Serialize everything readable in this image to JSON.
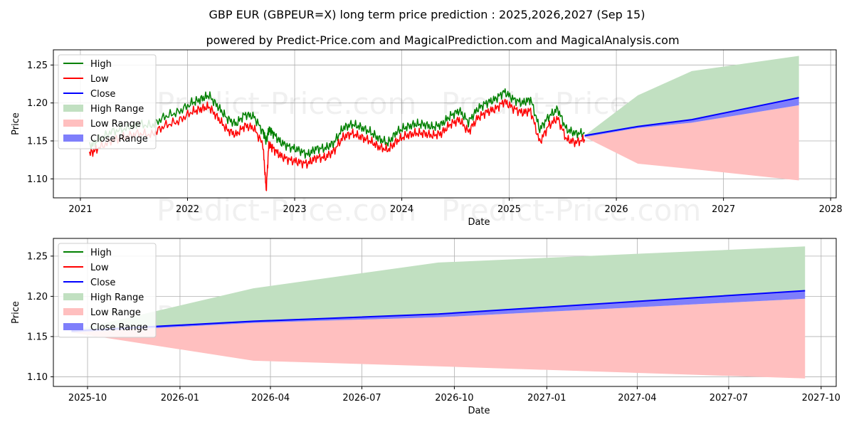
{
  "title": "GBP EUR (GBPEUR=X) long term price prediction : 2025,2026,2027 (Sep 15)",
  "subtitle": "powered by Predict-Price.com and MagicalPrediction.com and MagicalAnalysis.com",
  "watermark": "Predict-Price.com",
  "colors": {
    "high": "#008000",
    "low": "#ff0000",
    "close": "#0000ff",
    "high_range": "#c1e0c1",
    "low_range": "#ffbfbf",
    "close_range": "#7f7ffb"
  },
  "chart_data": [
    {
      "type": "line",
      "panel": "top",
      "xlabel": "Date",
      "ylabel": "Price",
      "x_ticks": [
        "2021",
        "2022",
        "2023",
        "2024",
        "2025",
        "2026",
        "2027",
        "2028"
      ],
      "y_ticks": [
        "1.10",
        "1.15",
        "1.20",
        "1.25"
      ],
      "xlim": [
        "2020-10-01",
        "2028-01-20"
      ],
      "ylim": [
        1.075,
        1.27
      ],
      "grid": true,
      "legend": {
        "placement": "top-left",
        "entries": [
          "High",
          "Low",
          "Close",
          "High Range",
          "Low Range",
          "Close Range"
        ]
      },
      "history": {
        "x": [
          "2021-02-01",
          "2021-03-01",
          "2021-04-15",
          "2021-06-01",
          "2021-07-15",
          "2021-09-01",
          "2021-10-15",
          "2021-12-01",
          "2022-01-15",
          "2022-02-15",
          "2022-03-15",
          "2022-04-15",
          "2022-05-15",
          "2022-06-15",
          "2022-07-15",
          "2022-08-15",
          "2022-09-15",
          "2022-09-26",
          "2022-10-05",
          "2022-10-20",
          "2022-11-15",
          "2022-12-15",
          "2023-01-15",
          "2023-02-15",
          "2023-03-15",
          "2023-04-15",
          "2023-05-15",
          "2023-06-15",
          "2023-07-15",
          "2023-08-15",
          "2023-09-15",
          "2023-10-15",
          "2023-11-15",
          "2023-12-15",
          "2024-01-15",
          "2024-02-15",
          "2024-03-15",
          "2024-04-15",
          "2024-05-15",
          "2024-06-15",
          "2024-07-15",
          "2024-08-15",
          "2024-09-15",
          "2024-10-15",
          "2024-11-15",
          "2024-12-15",
          "2025-01-15",
          "2025-02-15",
          "2025-03-15",
          "2025-04-15",
          "2025-05-15",
          "2025-06-15",
          "2025-07-15",
          "2025-08-15",
          "2025-09-15"
        ],
        "high": [
          1.143,
          1.15,
          1.162,
          1.166,
          1.172,
          1.17,
          1.182,
          1.188,
          1.2,
          1.205,
          1.21,
          1.195,
          1.18,
          1.172,
          1.185,
          1.182,
          1.162,
          1.15,
          1.165,
          1.16,
          1.148,
          1.142,
          1.138,
          1.132,
          1.14,
          1.14,
          1.148,
          1.167,
          1.172,
          1.168,
          1.162,
          1.153,
          1.147,
          1.162,
          1.168,
          1.172,
          1.172,
          1.168,
          1.172,
          1.183,
          1.19,
          1.175,
          1.192,
          1.2,
          1.205,
          1.215,
          1.205,
          1.2,
          1.205,
          1.165,
          1.182,
          1.192,
          1.165,
          1.16,
          1.16
        ],
        "low": [
          1.133,
          1.14,
          1.15,
          1.155,
          1.16,
          1.158,
          1.17,
          1.176,
          1.188,
          1.192,
          1.195,
          1.18,
          1.165,
          1.158,
          1.17,
          1.167,
          1.145,
          1.085,
          1.145,
          1.14,
          1.13,
          1.125,
          1.122,
          1.12,
          1.128,
          1.128,
          1.137,
          1.155,
          1.16,
          1.155,
          1.15,
          1.142,
          1.138,
          1.15,
          1.157,
          1.16,
          1.16,
          1.157,
          1.16,
          1.172,
          1.178,
          1.162,
          1.18,
          1.188,
          1.192,
          1.202,
          1.193,
          1.187,
          1.19,
          1.148,
          1.17,
          1.18,
          1.152,
          1.148,
          1.152
        ]
      },
      "prediction": {
        "x": [
          "2025-09-15",
          "2026-03-15",
          "2026-09-15",
          "2027-09-15"
        ],
        "close": [
          1.157,
          1.169,
          1.178,
          1.207
        ],
        "close_range_low": [
          1.155,
          1.167,
          1.174,
          1.197
        ],
        "high_range_upper": [
          1.157,
          1.21,
          1.242,
          1.262
        ],
        "low_range_lower": [
          1.155,
          1.12,
          1.113,
          1.098
        ]
      }
    },
    {
      "type": "line",
      "panel": "bottom",
      "xlabel": "Date",
      "ylabel": "Price",
      "x_ticks": [
        "2025-10",
        "2026-01",
        "2026-04",
        "2026-07",
        "2026-10",
        "2027-01",
        "2027-04",
        "2027-07",
        "2027-10"
      ],
      "y_ticks": [
        "1.10",
        "1.15",
        "1.20",
        "1.25"
      ],
      "xlim": [
        "2025-08-28",
        "2027-10-16"
      ],
      "ylim": [
        1.088,
        1.272
      ],
      "grid": true,
      "legend": {
        "placement": "top-left",
        "entries": [
          "High",
          "Low",
          "Close",
          "High Range",
          "Low Range",
          "Close Range"
        ]
      },
      "prediction": {
        "x": [
          "2025-09-15",
          "2026-03-15",
          "2026-09-15",
          "2027-09-15"
        ],
        "close": [
          1.157,
          1.169,
          1.178,
          1.207
        ],
        "close_range_low": [
          1.155,
          1.167,
          1.174,
          1.197
        ],
        "high_range_upper": [
          1.157,
          1.21,
          1.242,
          1.262
        ],
        "low_range_lower": [
          1.155,
          1.12,
          1.113,
          1.098
        ]
      }
    }
  ]
}
